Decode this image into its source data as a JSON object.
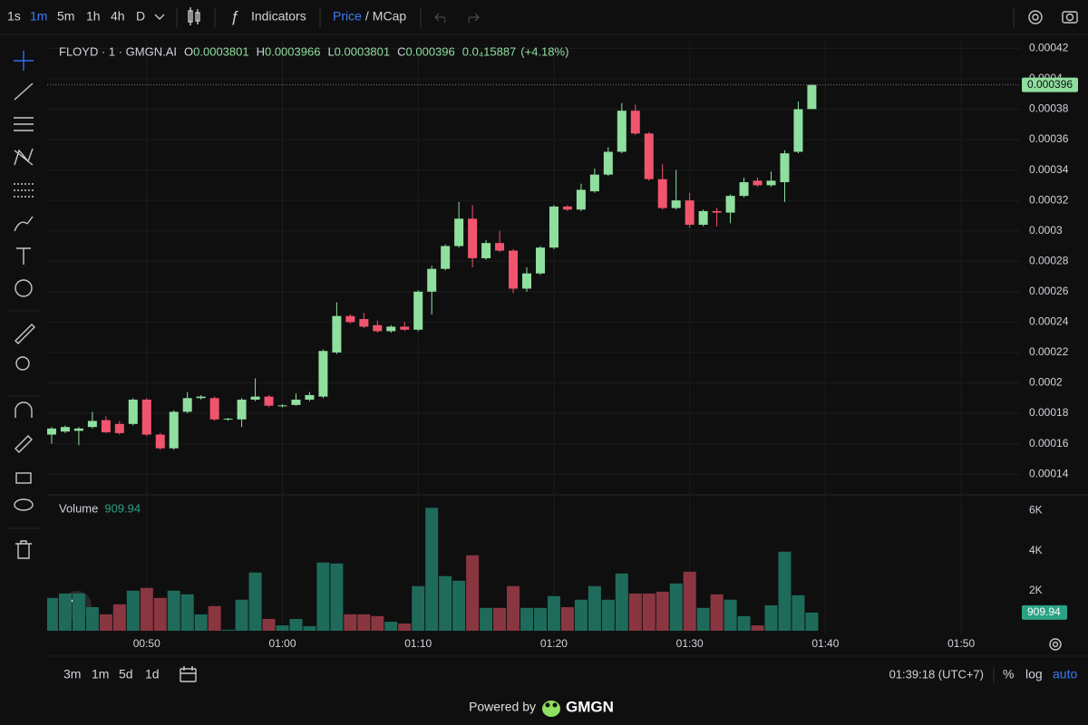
{
  "toolbar": {
    "intervals": [
      "1s",
      "1m",
      "5m",
      "1h",
      "4h",
      "D"
    ],
    "active_interval": 1,
    "indicators": "Indicators",
    "price": "Price",
    "separator": "/",
    "mcap": "MCap"
  },
  "chart_data": [
    {
      "type": "candlestick",
      "title": "FLOYD · 1 · GMGN.AI",
      "ohlc_labels": [
        "O",
        "H",
        "L",
        "C"
      ],
      "change": "0.0₄15887",
      "change_pct": "(+4.18%)",
      "x": [
        "00:43",
        "00:44",
        "00:45",
        "00:46",
        "00:47",
        "00:48",
        "00:49",
        "00:50",
        "00:51",
        "00:52",
        "00:53",
        "00:54",
        "00:55",
        "00:56",
        "00:57",
        "00:58",
        "00:59",
        "01:00",
        "01:01",
        "01:02",
        "01:03",
        "01:04",
        "01:05",
        "01:06",
        "01:07",
        "01:08",
        "01:09",
        "01:10",
        "01:11",
        "01:12",
        "01:13",
        "01:14",
        "01:15",
        "01:16",
        "01:17",
        "01:18",
        "01:19",
        "01:20",
        "01:21",
        "01:22",
        "01:23",
        "01:24",
        "01:25",
        "01:26",
        "01:27",
        "01:28",
        "01:29",
        "01:30",
        "01:31",
        "01:32",
        "01:33",
        "01:34",
        "01:35",
        "01:36",
        "01:37",
        "01:38",
        "01:39"
      ],
      "open": [
        0.000166,
        0.000168,
        0.0001685,
        0.000171,
        0.0001755,
        0.000173,
        0.000173,
        0.000189,
        0.000166,
        0.000157,
        0.000181,
        0.00019,
        0.00019,
        0.000176,
        0.000176,
        0.000189,
        0.000191,
        0.000185,
        0.0001855,
        0.000189,
        0.000191,
        0.00022,
        0.000244,
        0.000242,
        0.000238,
        0.000234,
        0.000237,
        0.000235,
        0.00026,
        0.000275,
        0.00029,
        0.000308,
        0.000282,
        0.000292,
        0.000287,
        0.000262,
        0.000272,
        0.000289,
        0.000316,
        0.000314,
        0.000326,
        0.000337,
        0.000352,
        0.000379,
        0.000364,
        0.000334,
        0.000315,
        0.00032,
        0.000304,
        0.000313,
        0.000312,
        0.000323,
        0.000333,
        0.00033,
        0.000332,
        0.000352,
        0.0003801
      ],
      "high": [
        0.000171,
        0.000172,
        0.000171,
        0.000181,
        0.000178,
        0.000175,
        0.00019,
        0.00019,
        0.000167,
        0.000182,
        0.000194,
        0.000192,
        0.000191,
        0.000177,
        0.00019,
        0.000203,
        0.000192,
        0.000186,
        0.000193,
        0.000194,
        0.000222,
        0.000253,
        0.000245,
        0.000246,
        0.000241,
        0.000238,
        0.00024,
        0.000261,
        0.000277,
        0.000291,
        0.000319,
        0.000317,
        0.000294,
        0.0003,
        0.000288,
        0.000276,
        0.00029,
        0.000317,
        0.000317,
        0.000331,
        0.000341,
        0.000355,
        0.000384,
        0.000383,
        0.000365,
        0.000344,
        0.00034,
        0.000325,
        0.000314,
        0.000315,
        0.000324,
        0.000335,
        0.000335,
        0.000339,
        0.000353,
        0.000385,
        0.0003966
      ],
      "low": [
        0.00016,
        0.000167,
        0.000159,
        0.00017,
        0.000167,
        0.000166,
        0.000172,
        0.000165,
        0.000156,
        0.000156,
        0.00018,
        0.000189,
        0.000175,
        0.000175,
        0.000171,
        0.000188,
        0.000184,
        0.000184,
        0.000185,
        0.000188,
        0.00019,
        0.000219,
        0.000239,
        0.000236,
        0.000233,
        0.000233,
        0.000234,
        0.000234,
        0.000245,
        0.000274,
        0.000289,
        0.000276,
        0.000281,
        0.000286,
        0.000259,
        0.00026,
        0.000271,
        0.000288,
        0.000313,
        0.000313,
        0.000325,
        0.000336,
        0.000351,
        0.000363,
        0.000333,
        0.000314,
        0.000314,
        0.000302,
        0.000303,
        0.000303,
        0.000305,
        0.000322,
        0.000329,
        0.000329,
        0.000319,
        0.000351,
        0.0003801
      ],
      "close": [
        0.00017,
        0.000171,
        0.00017,
        0.000175,
        0.0001675,
        0.000167,
        0.000189,
        0.000166,
        0.000157,
        0.000181,
        0.00019,
        0.000191,
        0.000176,
        0.0001765,
        0.000189,
        0.000191,
        0.000185,
        0.0001852,
        0.000189,
        0.000192,
        0.000221,
        0.000244,
        0.00024,
        0.000237,
        0.000234,
        0.000237,
        0.000235,
        0.00026,
        0.000275,
        0.00029,
        0.000308,
        0.000282,
        0.000292,
        0.000287,
        0.000262,
        0.000272,
        0.000289,
        0.000316,
        0.000314,
        0.000327,
        0.000337,
        0.000352,
        0.000379,
        0.000364,
        0.000334,
        0.000315,
        0.00032,
        0.000304,
        0.000313,
        0.000312,
        0.000323,
        0.000332,
        0.00033,
        0.000333,
        0.000351,
        0.00038,
        0.000396
      ],
      "up_color": "#8fdf9f",
      "down_color": "#f2546e",
      "xlim": [
        "00:42",
        "01:54"
      ],
      "xticks": [
        "00:50",
        "01:00",
        "01:10",
        "01:20",
        "01:30",
        "01:40",
        "01:50"
      ],
      "ylim": [
        0.000127,
        0.000425
      ],
      "yticks": [
        0.00014,
        0.00016,
        0.00018,
        0.0002,
        0.00022,
        0.00024,
        0.00026,
        0.00028,
        0.0003,
        0.00032,
        0.00034,
        0.00036,
        0.00038,
        0.0004,
        0.00042
      ],
      "grid": true
    },
    {
      "type": "bar",
      "title": "Volume",
      "x": [
        "00:43",
        "00:44",
        "00:45",
        "00:46",
        "00:47",
        "00:48",
        "00:49",
        "00:50",
        "00:51",
        "00:52",
        "00:53",
        "00:54",
        "00:55",
        "00:56",
        "00:57",
        "00:58",
        "00:59",
        "01:00",
        "01:01",
        "01:02",
        "01:03",
        "01:04",
        "01:05",
        "01:06",
        "01:07",
        "01:08",
        "01:09",
        "01:10",
        "01:11",
        "01:12",
        "01:13",
        "01:14",
        "01:15",
        "01:16",
        "01:17",
        "01:18",
        "01:19",
        "01:20",
        "01:21",
        "01:22",
        "01:23",
        "01:24",
        "01:25",
        "01:26",
        "01:27",
        "01:28",
        "01:29",
        "01:30",
        "01:31",
        "01:32",
        "01:33",
        "01:34",
        "01:35",
        "01:36",
        "01:37",
        "01:38",
        "01:39"
      ],
      "values": [
        1640,
        1860,
        1860,
        1180,
        820,
        1320,
        2000,
        2140,
        1640,
        2000,
        1820,
        820,
        1230,
        50,
        1550,
        2910,
        590,
        270,
        590,
        230,
        3410,
        3360,
        820,
        820,
        730,
        450,
        360,
        2230,
        6140,
        2730,
        2500,
        3770,
        1140,
        1140,
        2230,
        1140,
        1140,
        1730,
        1180,
        1550,
        2230,
        1550,
        2860,
        1860,
        1860,
        1950,
        2360,
        2950,
        1140,
        1820,
        1550,
        730,
        270,
        1270,
        3950,
        1770,
        909.94
      ],
      "up_color": "#1e6b5b",
      "down_color": "#8a3641",
      "ylim": [
        0,
        6700
      ],
      "yticks": [
        {
          "value": 2000,
          "label": "2K"
        },
        {
          "value": 4000,
          "label": "4K"
        },
        {
          "value": 6000,
          "label": "6K"
        }
      ]
    }
  ],
  "bottom_bar": {
    "ranges": [
      "3m",
      "1m",
      "5d",
      "1d"
    ],
    "clock": "01:39:18 (UTC+7)",
    "percent": "%",
    "log": "log",
    "auto": "auto"
  },
  "footer": {
    "powered_by": "Powered by",
    "brand": "GMGN"
  }
}
